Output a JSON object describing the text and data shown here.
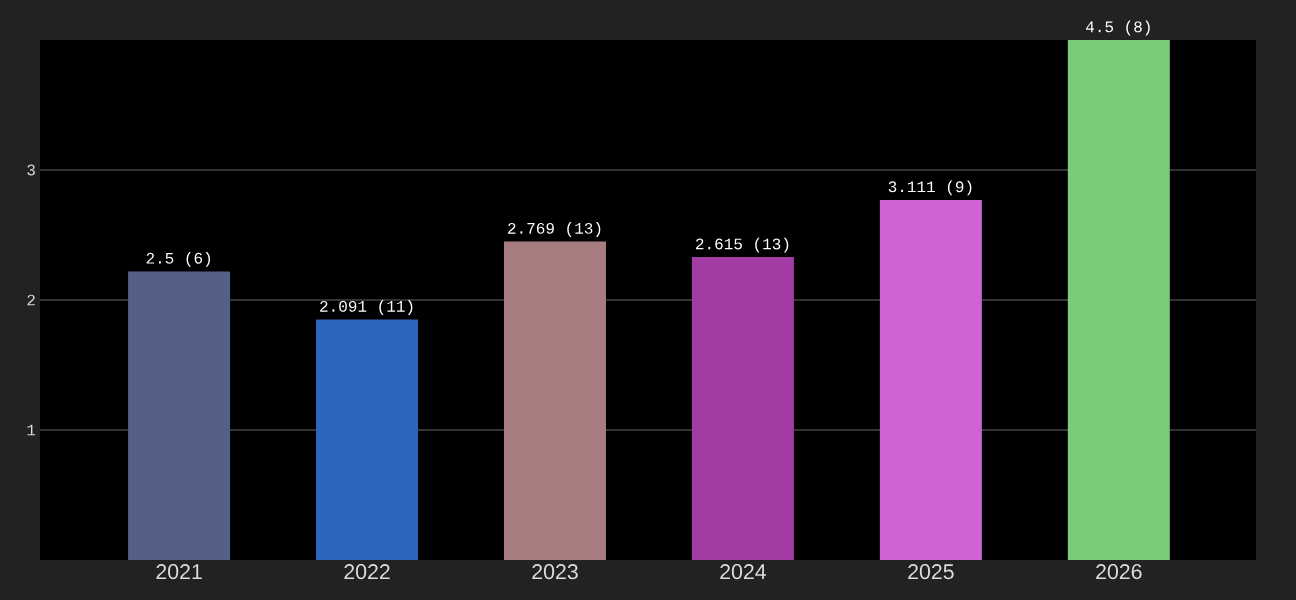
{
  "chart_data": {
    "type": "bar",
    "categories": [
      "2021",
      "2022",
      "2023",
      "2024",
      "2025",
      "2026"
    ],
    "values": [
      2.22,
      1.85,
      2.45,
      2.33,
      2.77,
      4.0
    ],
    "colors": [
      "#556089",
      "#2a67bd",
      "#a87c7e",
      "#a23ba3",
      "#d063d3",
      "#7bcb7a"
    ],
    "annotations": [
      {
        "text": "2.5 (6)",
        "x": "2021",
        "y": 2.22
      },
      {
        "text": "2.091 (11)",
        "x": "2022",
        "y": 1.85
      },
      {
        "text": "2.769 (13)",
        "x": "2023",
        "y": 2.45
      },
      {
        "text": "2.615 (13)",
        "x": "2024",
        "y": 2.33
      },
      {
        "text": "3.111 (9)",
        "x": "2025",
        "y": 2.77
      },
      {
        "text": "4.5 (8)",
        "x": "2026",
        "y": 4.0
      }
    ],
    "ylim": [
      0,
      4
    ],
    "yticks": [
      1,
      2,
      3
    ],
    "grid": "y"
  }
}
